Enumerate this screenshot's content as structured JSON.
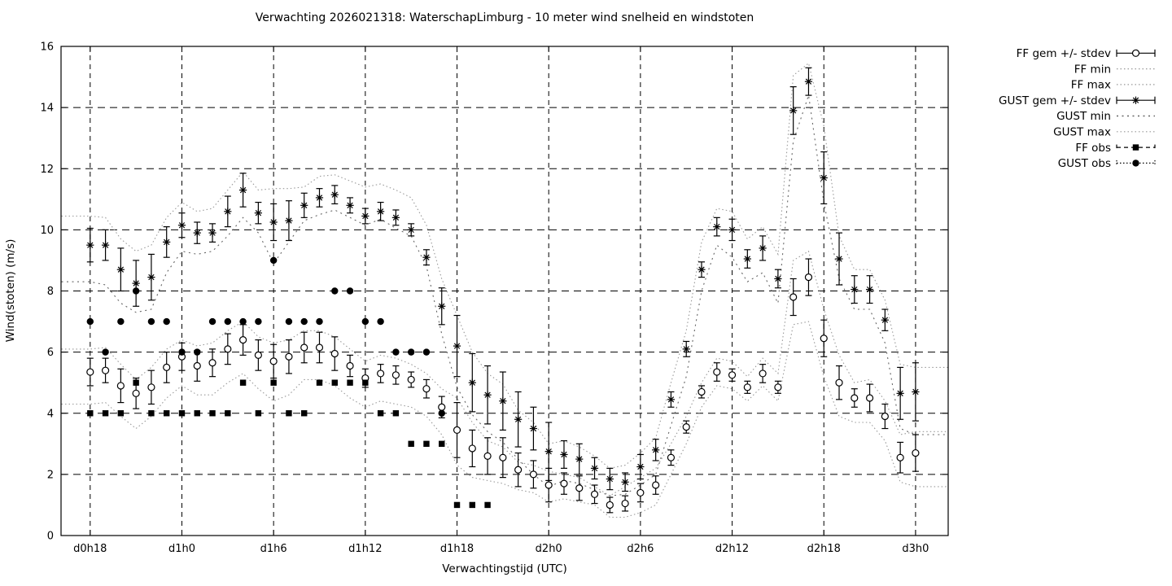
{
  "colors": {
    "foreground": "#000000",
    "grid": "#000000",
    "envelope_dotted": "#999999",
    "gust_min_dotted": "#666666",
    "background": "#ffffff"
  },
  "chart_data": {
    "type": "line",
    "subtype": "gnuplot errorbars + dotted envelopes + observation points",
    "title": "Verwachting 2026021318: WaterschapLimburg - 10 meter wind snelheid en windstoten",
    "xlabel": "Verwachtingstijd (UTC)",
    "ylabel": "Wind(stoten) (m/s)",
    "ylim": [
      0,
      16
    ],
    "ytick_step": 2,
    "grid": true,
    "legend_position": "outside-top-right",
    "x_unit": "hours since d0h18, hourly points",
    "x_tick_hours": [
      0,
      6,
      12,
      18,
      24,
      30,
      36,
      42,
      48,
      54
    ],
    "x_tick_labels": [
      "d0h18",
      "d1h0",
      "d1h6",
      "d1h12",
      "d1h18",
      "d2h0",
      "d2h6",
      "d2h12",
      "d2h18",
      "d3h0"
    ],
    "x_hour_labels": [
      "d0h18",
      "d0h19",
      "d0h20",
      "d0h21",
      "d0h22",
      "d0h23",
      "d1h0",
      "d1h1",
      "d1h2",
      "d1h3",
      "d1h4",
      "d1h5",
      "d1h6",
      "d1h7",
      "d1h8",
      "d1h9",
      "d1h10",
      "d1h11",
      "d1h12",
      "d1h13",
      "d1h14",
      "d1h15",
      "d1h16",
      "d1h17",
      "d1h18",
      "d1h19",
      "d1h20",
      "d1h21",
      "d1h22",
      "d1h23",
      "d2h0",
      "d2h1",
      "d2h2",
      "d2h3",
      "d2h4",
      "d2h5",
      "d2h6",
      "d2h7",
      "d2h8",
      "d2h9",
      "d2h10",
      "d2h11",
      "d2h12",
      "d2h13",
      "d2h14",
      "d2h15",
      "d2h16",
      "d2h17",
      "d2h18",
      "d2h19",
      "d2h20",
      "d2h21",
      "d2h22",
      "d2h23",
      "d3h0"
    ],
    "series": [
      {
        "name": "FF gem +/- stdev",
        "style": "errorbar-open-circle",
        "values": [
          5.35,
          5.4,
          4.9,
          4.65,
          4.85,
          5.5,
          5.85,
          5.55,
          5.65,
          6.1,
          6.4,
          5.9,
          5.7,
          5.85,
          6.15,
          6.15,
          5.95,
          5.55,
          5.15,
          5.3,
          5.25,
          5.1,
          4.8,
          4.2,
          3.45,
          2.85,
          2.6,
          2.55,
          2.15,
          2.0,
          1.65,
          1.7,
          1.55,
          1.35,
          1.0,
          1.05,
          1.4,
          1.65,
          2.55,
          3.55,
          4.7,
          5.35,
          5.25,
          4.85,
          5.3,
          4.85,
          7.8,
          8.45,
          6.45,
          5.0,
          4.5,
          4.5,
          3.9,
          2.55,
          2.7
        ],
        "stdev": [
          0.45,
          0.4,
          0.55,
          0.5,
          0.55,
          0.5,
          0.45,
          0.5,
          0.45,
          0.5,
          0.5,
          0.5,
          0.55,
          0.55,
          0.5,
          0.5,
          0.55,
          0.35,
          0.3,
          0.3,
          0.3,
          0.25,
          0.3,
          0.35,
          0.9,
          0.6,
          0.6,
          0.65,
          0.55,
          0.45,
          0.55,
          0.35,
          0.4,
          0.3,
          0.25,
          0.25,
          0.3,
          0.3,
          0.25,
          0.2,
          0.2,
          0.3,
          0.2,
          0.2,
          0.3,
          0.2,
          0.6,
          0.6,
          0.6,
          0.55,
          0.3,
          0.45,
          0.4,
          0.5,
          0.6
        ]
      },
      {
        "name": "FF min",
        "style": "dotted-fine",
        "values": [
          4.3,
          4.35,
          3.9,
          3.5,
          3.9,
          4.5,
          4.9,
          4.6,
          4.6,
          5.0,
          5.3,
          4.8,
          4.4,
          4.6,
          5.1,
          5.1,
          4.9,
          4.5,
          4.2,
          4.4,
          4.3,
          4.2,
          3.9,
          3.3,
          2.3,
          1.9,
          1.8,
          1.7,
          1.5,
          1.4,
          1.1,
          1.2,
          1.1,
          1.0,
          0.6,
          0.6,
          0.75,
          1.0,
          2.0,
          3.0,
          4.2,
          4.9,
          4.8,
          4.4,
          4.9,
          4.4,
          6.9,
          7.0,
          5.2,
          3.9,
          3.7,
          3.7,
          3.1,
          1.75,
          1.6
        ]
      },
      {
        "name": "FF max",
        "style": "dotted-fine",
        "values": [
          6.1,
          6.15,
          5.6,
          5.1,
          5.5,
          6.1,
          6.4,
          6.2,
          6.3,
          6.7,
          7.0,
          6.5,
          6.3,
          6.4,
          6.7,
          6.7,
          6.5,
          6.1,
          5.7,
          5.9,
          5.8,
          5.6,
          5.3,
          4.8,
          4.5,
          3.7,
          3.1,
          2.9,
          2.4,
          2.3,
          2.1,
          2.0,
          1.9,
          1.6,
          1.3,
          1.6,
          1.9,
          2.2,
          3.0,
          3.9,
          5.0,
          5.8,
          5.7,
          5.2,
          5.8,
          5.3,
          9.0,
          9.3,
          7.4,
          5.9,
          5.0,
          5.1,
          4.4,
          3.3,
          3.4
        ]
      },
      {
        "name": "GUST gem +/- stdev",
        "style": "errorbar-asterisk",
        "values": [
          9.5,
          9.5,
          8.7,
          8.25,
          8.45,
          9.6,
          10.15,
          9.9,
          9.9,
          10.6,
          11.3,
          10.55,
          10.25,
          10.3,
          10.8,
          11.05,
          11.15,
          10.8,
          10.45,
          10.6,
          10.4,
          10.0,
          9.1,
          7.5,
          6.2,
          5.0,
          4.6,
          4.4,
          3.8,
          3.5,
          2.75,
          2.65,
          2.5,
          2.2,
          1.85,
          1.75,
          2.25,
          2.8,
          4.45,
          6.1,
          8.7,
          10.1,
          10.0,
          9.05,
          9.4,
          8.4,
          13.9,
          14.85,
          11.7,
          9.05,
          8.05,
          8.05,
          7.05,
          4.65,
          4.7
        ],
        "stdev": [
          0.55,
          0.5,
          0.7,
          0.75,
          0.75,
          0.5,
          0.4,
          0.35,
          0.3,
          0.5,
          0.55,
          0.35,
          0.6,
          0.65,
          0.4,
          0.3,
          0.3,
          0.25,
          0.25,
          0.3,
          0.25,
          0.2,
          0.25,
          0.6,
          1.0,
          0.95,
          0.95,
          0.95,
          0.9,
          0.7,
          0.95,
          0.45,
          0.5,
          0.35,
          0.35,
          0.3,
          0.4,
          0.35,
          0.25,
          0.25,
          0.25,
          0.3,
          0.35,
          0.3,
          0.4,
          0.3,
          0.78,
          0.45,
          0.85,
          0.85,
          0.45,
          0.45,
          0.35,
          0.85,
          0.95
        ]
      },
      {
        "name": "GUST min",
        "style": "dotted-sparse",
        "values": [
          8.3,
          8.2,
          7.6,
          7.3,
          7.4,
          8.6,
          9.3,
          9.2,
          9.3,
          9.8,
          10.4,
          9.9,
          8.9,
          9.6,
          10.3,
          10.5,
          10.65,
          10.4,
          10.15,
          10.35,
          10.05,
          9.8,
          8.8,
          6.6,
          4.85,
          3.95,
          3.4,
          3.05,
          2.5,
          2.0,
          1.6,
          1.8,
          1.7,
          1.5,
          1.3,
          1.35,
          1.65,
          2.0,
          3.6,
          5.2,
          8.0,
          9.5,
          9.1,
          8.3,
          8.6,
          7.6,
          12.9,
          14.4,
          10.9,
          8.4,
          7.4,
          7.4,
          6.3,
          3.5,
          3.3
        ]
      },
      {
        "name": "GUST max",
        "style": "dotted-fine",
        "values": [
          10.45,
          10.4,
          9.7,
          9.3,
          9.5,
          10.4,
          10.9,
          10.6,
          10.7,
          11.3,
          11.9,
          11.3,
          11.35,
          11.35,
          11.4,
          11.75,
          11.8,
          11.6,
          11.4,
          11.5,
          11.3,
          11.05,
          10.15,
          8.4,
          7.2,
          6.0,
          5.3,
          4.95,
          4.1,
          3.7,
          3.0,
          3.1,
          2.9,
          2.6,
          2.2,
          2.3,
          2.7,
          3.2,
          5.0,
          6.7,
          9.6,
          10.7,
          10.6,
          9.7,
          10.1,
          9.2,
          15.05,
          15.45,
          13.4,
          9.8,
          8.7,
          8.7,
          7.7,
          5.6,
          5.5
        ]
      },
      {
        "name": "FF obs",
        "style": "points-filled-square",
        "values": [
          4,
          4,
          4,
          5,
          4,
          4,
          4,
          4,
          4,
          4,
          5,
          4,
          5,
          4,
          4,
          5,
          5,
          5,
          5,
          4,
          4,
          3,
          3,
          3,
          1,
          1,
          1,
          null,
          null,
          null,
          null,
          null,
          null,
          null,
          null,
          null,
          null,
          null,
          null,
          null,
          null,
          null,
          null,
          null,
          null,
          null,
          null,
          null,
          null,
          null,
          null,
          null,
          null,
          null,
          null
        ]
      },
      {
        "name": "GUST obs",
        "style": "points-filled-circle",
        "values": [
          7,
          6,
          7,
          8,
          7,
          7,
          6,
          6,
          7,
          7,
          7,
          7,
          9,
          7,
          7,
          7,
          8,
          8,
          7,
          7,
          6,
          6,
          6,
          4,
          null,
          null,
          null,
          null,
          null,
          null,
          null,
          null,
          null,
          null,
          null,
          null,
          null,
          null,
          null,
          null,
          null,
          null,
          null,
          null,
          null,
          null,
          null,
          null,
          null,
          null,
          null,
          null,
          null,
          null,
          null
        ]
      }
    ]
  }
}
